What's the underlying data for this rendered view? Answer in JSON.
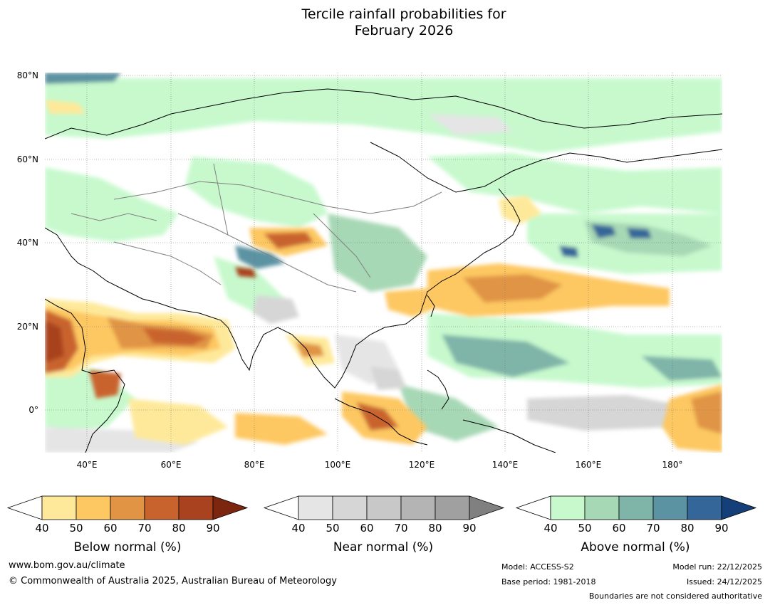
{
  "title_line1": "Tercile rainfall probabilities for",
  "title_line2": "February 2026",
  "map": {
    "lat_labels": [
      "80°N",
      "60°N",
      "40°N",
      "20°N",
      "0°"
    ],
    "lon_labels": [
      "40°E",
      "60°E",
      "80°E",
      "100°E",
      "120°E",
      "140°E",
      "160°E",
      "180°"
    ]
  },
  "colorbars": [
    {
      "title": "Below normal (%)",
      "ticks": [
        "40",
        "50",
        "60",
        "70",
        "80",
        "90"
      ],
      "colors": [
        "#ffffff",
        "#fee99a",
        "#fdc862",
        "#e09444",
        "#c9632e",
        "#a8421f",
        "#7c2610"
      ]
    },
    {
      "title": "Near normal (%)",
      "ticks": [
        "40",
        "50",
        "60",
        "70",
        "80",
        "90"
      ],
      "colors": [
        "#ffffff",
        "#e5e5e5",
        "#d6d6d6",
        "#c8c8c8",
        "#b4b4b4",
        "#a0a0a0",
        "#808080"
      ]
    },
    {
      "title": "Above normal (%)",
      "ticks": [
        "40",
        "50",
        "60",
        "70",
        "80",
        "90"
      ],
      "colors": [
        "#ffffff",
        "#c7f9cd",
        "#a7d8b5",
        "#7fb4a8",
        "#5b93a2",
        "#346699",
        "#153f78"
      ]
    }
  ],
  "footer": {
    "url": "www.bom.gov.au/climate",
    "copyright": "© Commonwealth of Australia 2025, Australian Bureau of Meteorology",
    "model": "Model: ACCESS-S2",
    "base_period": "Base period: 1981-2018",
    "model_run": "Model run: 22/12/2025",
    "issued": "Issued: 24/12/2025",
    "disclaimer": "Boundaries are not considered authoritative"
  }
}
